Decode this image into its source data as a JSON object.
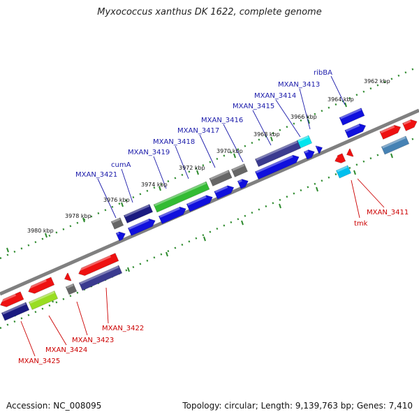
{
  "title": "Myxococcus xanthus DK 1622, complete genome",
  "accession": "Accession: NC_008095",
  "summary": "Topology: circular; Length: 9,139,763 bp; Genes: 7,410",
  "colors": {
    "backbone": "#808080",
    "ruler_dot": "#2e8b2e",
    "label_top": "#1a1aaa",
    "label_bottom": "#cc0000"
  },
  "scale_labels": [
    "3962 kbp",
    "3964 kbp",
    "3966 kbp",
    "3968 kbp",
    "3970 kbp",
    "3972 kbp",
    "3974 kbp",
    "3976 kbp",
    "3978 kbp",
    "3980 kbp"
  ],
  "top_labels": [
    "ribBA",
    "MXAN_3413",
    "MXAN_3414",
    "MXAN_3415",
    "MXAN_3416",
    "MXAN_3417",
    "MXAN_3418",
    "MXAN_3419",
    "cumA",
    "MXAN_3421"
  ],
  "bottom_labels": [
    "MXAN_3411",
    "tmk",
    "MXAN_3422",
    "MXAN_3423",
    "MXAN_3424",
    "MXAN_3425"
  ]
}
